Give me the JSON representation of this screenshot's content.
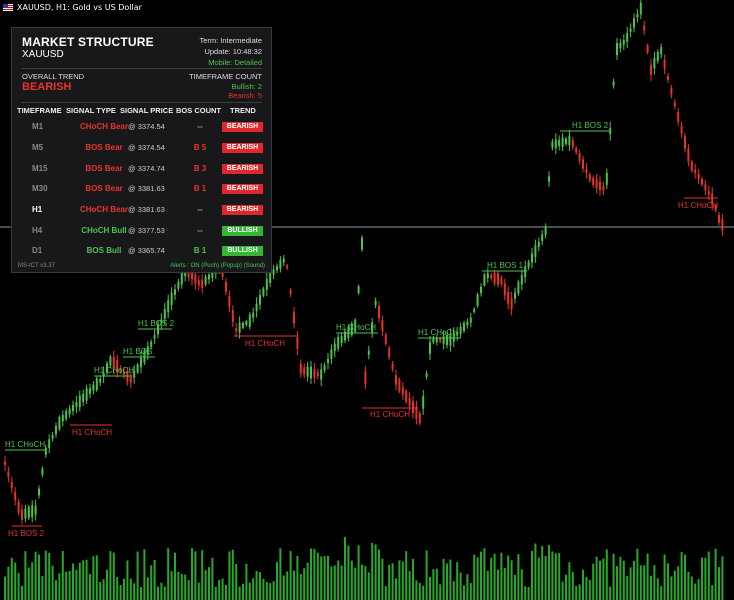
{
  "window": {
    "title": "XAUUSD, H1:  Gold vs US Dollar"
  },
  "colors": {
    "bull": "#4cc44c",
    "bear": "#e8332b",
    "background": "#000000",
    "panel": "#18181b"
  },
  "panel": {
    "title": "MARKET STRUCTURE",
    "symbol": "XAUUSD",
    "term": "Term: Intermediate",
    "update": "Update: 10:48:32",
    "mobile": "Mobile: Detailed",
    "overall_label": "OVERALL TREND",
    "overall_value": "BEARISH",
    "tf_count_label": "TIMEFRAME COUNT",
    "bullish_count": "Bullish: 2",
    "bearish_count": "Bearish: 5",
    "headers": {
      "timeframe": "TIMEFRAME",
      "signal_type": "SIGNAL TYPE",
      "signal_price": "SIGNAL PRICE",
      "bos_count": "BOS COUNT",
      "trend": "TREND"
    },
    "rows": [
      {
        "tf": "M1",
        "signal": "CHoCH Bear",
        "price": "@ 3374.54",
        "bos": "--",
        "trend": "BEARISH",
        "dir": "bear"
      },
      {
        "tf": "M5",
        "signal": "BOS Bear",
        "price": "@ 3374.54",
        "bos": "B 5",
        "trend": "BEARISH",
        "dir": "bear"
      },
      {
        "tf": "M15",
        "signal": "BOS Bear",
        "price": "@ 3374.74",
        "bos": "B 3",
        "trend": "BEARISH",
        "dir": "bear"
      },
      {
        "tf": "M30",
        "signal": "BOS Bear",
        "price": "@ 3381.63",
        "bos": "B 1",
        "trend": "BEARISH",
        "dir": "bear"
      },
      {
        "tf": "H1",
        "signal": "CHoCH Bear",
        "price": "@ 3381.63",
        "bos": "--",
        "trend": "BEARISH",
        "dir": "bear"
      },
      {
        "tf": "H4",
        "signal": "CHoCH Bull",
        "price": "@ 3377.53",
        "bos": "--",
        "trend": "BULLISH",
        "dir": "bull"
      },
      {
        "tf": "D1",
        "signal": "BOS Bull",
        "price": "@ 3365.74",
        "bos": "B 1",
        "trend": "BULLISH",
        "dir": "bull"
      }
    ],
    "version": "MS-ICT v3.37",
    "alerts": "Alerts : ON (Push) (Popup) (Sound)"
  },
  "chart": {
    "labels": [
      {
        "text": "H1 BOS 2",
        "dir": "bear"
      },
      {
        "text": "H1 CHoCH",
        "dir": "bull"
      },
      {
        "text": "H1 CHoCH",
        "dir": "bear"
      },
      {
        "text": "H1 CHoCH",
        "dir": "bull"
      },
      {
        "text": "H1 BOS",
        "dir": "bull"
      },
      {
        "text": "H1 BOS 2",
        "dir": "bull"
      },
      {
        "text": "H1 CHoCH",
        "dir": "bear"
      },
      {
        "text": "H1 CHoCH",
        "dir": "bull"
      },
      {
        "text": "H1 CHoCH",
        "dir": "bear"
      },
      {
        "text": "H1 CHoCH",
        "dir": "bull"
      },
      {
        "text": "H1 BOS 1",
        "dir": "bull"
      },
      {
        "text": "H1 BOS 2",
        "dir": "bull"
      },
      {
        "text": "H1 CHoCH",
        "dir": "bear"
      }
    ]
  }
}
